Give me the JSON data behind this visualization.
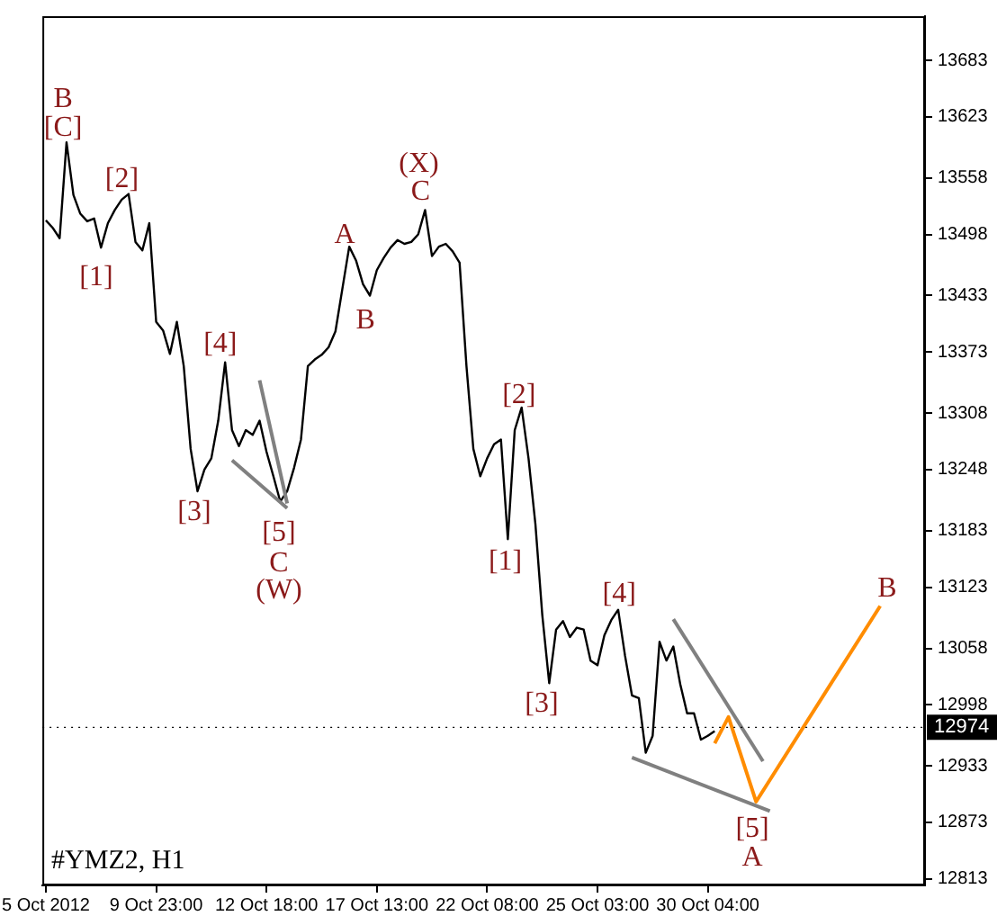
{
  "chart_data": {
    "type": "line",
    "title": "#YMZ2, H1",
    "marker": "none",
    "categories": [
      "5 Oct 2012",
      null,
      null,
      null,
      null,
      null,
      null,
      null,
      null,
      null,
      null,
      null,
      null,
      null,
      null,
      null,
      "9 Oct 23:00",
      null,
      null,
      null,
      null,
      null,
      null,
      null,
      null,
      null,
      null,
      null,
      null,
      null,
      null,
      null,
      "12 Oct 18:00",
      null,
      null,
      null,
      null,
      null,
      null,
      null,
      null,
      null,
      null,
      null,
      null,
      null,
      null,
      null,
      "17 Oct 13:00",
      null,
      null,
      null,
      null,
      null,
      null,
      null,
      null,
      null,
      null,
      null,
      null,
      null,
      null,
      null,
      "22 Oct 08:00",
      null,
      null,
      null,
      null,
      null,
      null,
      null,
      null,
      null,
      null,
      null,
      null,
      null,
      null,
      null,
      "25 Oct 03:00",
      null,
      null,
      null,
      null,
      null,
      null,
      null,
      null,
      null,
      null,
      null,
      null,
      null,
      null,
      null,
      "30 Oct 04:00",
      null,
      null,
      null,
      null,
      null,
      null,
      null,
      null,
      null,
      null,
      null,
      null,
      null,
      null,
      null,
      null,
      null,
      null,
      null,
      null,
      null,
      null,
      null,
      null,
      null,
      null,
      null,
      null,
      null,
      null,
      null
    ],
    "ylim": [
      12806,
      13730
    ],
    "yticks": [
      12813,
      12873,
      12933,
      12998,
      13058,
      13123,
      13183,
      13248,
      13308,
      13373,
      13433,
      13498,
      13558,
      13623,
      13683
    ],
    "ref_lines": [
      {
        "axis": "y",
        "value": 12974,
        "label": "12974",
        "color": "#000000"
      }
    ],
    "series": [
      {
        "color": "#000000",
        "values": [
          13513,
          13505,
          13494,
          13596,
          13540,
          13520,
          13512,
          13515,
          13484,
          13510,
          13524,
          13535,
          13541,
          13490,
          13481,
          13510,
          13405,
          13396,
          13371,
          13405,
          13358,
          13270,
          13225,
          13248,
          13260,
          13300,
          13362,
          13290,
          13273,
          13290,
          13285,
          13300,
          13267,
          13241,
          13214,
          13225,
          13250,
          13280,
          13358,
          13365,
          13370,
          13378,
          13395,
          13440,
          13485,
          13470,
          13445,
          13433,
          13460,
          13473,
          13484,
          13492,
          13488,
          13490,
          13498,
          13524,
          13475,
          13485,
          13488,
          13480,
          13468,
          13358,
          13270,
          13241,
          13260,
          13275,
          13280,
          13174,
          13290,
          13314,
          13260,
          13190,
          13093,
          13021,
          13078,
          13087,
          13070,
          13080,
          13078,
          13045,
          13040,
          13072,
          13088,
          13099,
          13050,
          13008,
          13005,
          12947,
          12965,
          13065,
          13045,
          13060,
          13020,
          12989,
          12989,
          12961,
          12965,
          12970,
          null,
          null,
          null,
          null,
          null,
          null,
          null,
          null,
          null,
          null,
          null,
          null,
          null,
          null,
          null,
          null,
          null,
          null,
          null,
          null,
          null,
          null,
          null,
          null,
          null,
          null,
          null,
          null,
          null,
          null
        ]
      },
      {
        "color": "#808080",
        "values": [
          null,
          null,
          null,
          null,
          null,
          null,
          null,
          null,
          null,
          null,
          null,
          null,
          null,
          null,
          null,
          null,
          null,
          null,
          null,
          null,
          null,
          null,
          null,
          null,
          null,
          null,
          null,
          null,
          null,
          null,
          null,
          13343,
          null,
          null,
          null,
          13212,
          null,
          null,
          null,
          null,
          null,
          null,
          null,
          null,
          null,
          null,
          null,
          null,
          null,
          null,
          null,
          null,
          null,
          null,
          null,
          null,
          null,
          null,
          null,
          null,
          null,
          null,
          null,
          null,
          null,
          null,
          null,
          null,
          null,
          null,
          null,
          null,
          null,
          null,
          null,
          null,
          null,
          null,
          null,
          null,
          null,
          null,
          null,
          null,
          null,
          null,
          null,
          null,
          null,
          null,
          null,
          null,
          null,
          null,
          null,
          null,
          null,
          null,
          null,
          null,
          null,
          null,
          null,
          null,
          null,
          null,
          null,
          null,
          null,
          null,
          null,
          null,
          null,
          null,
          null,
          null,
          null,
          null,
          null,
          null,
          null,
          null,
          null,
          null,
          null,
          null,
          null,
          null
        ]
      },
      {
        "color": "#808080",
        "values": [
          null,
          null,
          null,
          null,
          null,
          null,
          null,
          null,
          null,
          null,
          null,
          null,
          null,
          null,
          null,
          null,
          null,
          null,
          null,
          null,
          null,
          null,
          null,
          null,
          null,
          null,
          null,
          13258,
          null,
          null,
          null,
          null,
          null,
          null,
          null,
          13207,
          null,
          null,
          null,
          null,
          null,
          null,
          null,
          null,
          null,
          null,
          null,
          null,
          null,
          null,
          null,
          null,
          null,
          null,
          null,
          null,
          null,
          null,
          null,
          null,
          null,
          null,
          null,
          null,
          null,
          null,
          null,
          null,
          null,
          null,
          null,
          null,
          null,
          null,
          null,
          null,
          null,
          null,
          null,
          null,
          null,
          null,
          null,
          null,
          null,
          null,
          null,
          null,
          null,
          null,
          null,
          null,
          null,
          null,
          null,
          null,
          null,
          null,
          null,
          null,
          null,
          null,
          null,
          null,
          null,
          null,
          null,
          null,
          null,
          null,
          null,
          null,
          null,
          null,
          null,
          null,
          null,
          null,
          null,
          null,
          null,
          null,
          null,
          null,
          null,
          null,
          null,
          null
        ]
      },
      {
        "color": "#808080",
        "values": [
          null,
          null,
          null,
          null,
          null,
          null,
          null,
          null,
          null,
          null,
          null,
          null,
          null,
          null,
          null,
          null,
          null,
          null,
          null,
          null,
          null,
          null,
          null,
          null,
          null,
          null,
          null,
          null,
          null,
          null,
          null,
          null,
          null,
          null,
          null,
          null,
          null,
          null,
          null,
          null,
          null,
          null,
          null,
          null,
          null,
          null,
          null,
          null,
          null,
          null,
          null,
          null,
          null,
          null,
          null,
          null,
          null,
          null,
          null,
          null,
          null,
          null,
          null,
          null,
          null,
          null,
          null,
          null,
          null,
          null,
          null,
          null,
          null,
          null,
          null,
          null,
          null,
          null,
          null,
          null,
          null,
          null,
          null,
          null,
          null,
          null,
          null,
          null,
          null,
          null,
          null,
          13089,
          null,
          null,
          null,
          null,
          null,
          null,
          null,
          null,
          null,
          null,
          null,
          null,
          12938,
          null,
          null,
          null,
          null,
          null,
          null,
          null,
          null,
          null,
          null,
          null,
          null,
          null,
          null,
          null,
          null,
          null,
          null,
          null,
          null,
          null,
          null,
          null
        ]
      },
      {
        "color": "#808080",
        "values": [
          null,
          null,
          null,
          null,
          null,
          null,
          null,
          null,
          null,
          null,
          null,
          null,
          null,
          null,
          null,
          null,
          null,
          null,
          null,
          null,
          null,
          null,
          null,
          null,
          null,
          null,
          null,
          null,
          null,
          null,
          null,
          null,
          null,
          null,
          null,
          null,
          null,
          null,
          null,
          null,
          null,
          null,
          null,
          null,
          null,
          null,
          null,
          null,
          null,
          null,
          null,
          null,
          null,
          null,
          null,
          null,
          null,
          null,
          null,
          null,
          null,
          null,
          null,
          null,
          null,
          null,
          null,
          null,
          null,
          null,
          null,
          null,
          null,
          null,
          null,
          null,
          null,
          null,
          null,
          null,
          null,
          null,
          null,
          null,
          null,
          12942,
          null,
          null,
          null,
          null,
          null,
          null,
          null,
          null,
          null,
          null,
          null,
          null,
          null,
          null,
          null,
          null,
          null,
          null,
          null,
          12885,
          null,
          null,
          null,
          null,
          null,
          null,
          null,
          null,
          null,
          null,
          null,
          null,
          null,
          null,
          null,
          null,
          null,
          null,
          null,
          null,
          null,
          null
        ]
      },
      {
        "color": "#ff8c00",
        "values": [
          null,
          null,
          null,
          null,
          null,
          null,
          null,
          null,
          null,
          null,
          null,
          null,
          null,
          null,
          null,
          null,
          null,
          null,
          null,
          null,
          null,
          null,
          null,
          null,
          null,
          null,
          null,
          null,
          null,
          null,
          null,
          null,
          null,
          null,
          null,
          null,
          null,
          null,
          null,
          null,
          null,
          null,
          null,
          null,
          null,
          null,
          null,
          null,
          null,
          null,
          null,
          null,
          null,
          null,
          null,
          null,
          null,
          null,
          null,
          null,
          null,
          null,
          null,
          null,
          null,
          null,
          null,
          null,
          null,
          null,
          null,
          null,
          null,
          null,
          null,
          null,
          null,
          null,
          null,
          null,
          null,
          null,
          null,
          null,
          null,
          null,
          null,
          null,
          null,
          null,
          null,
          null,
          null,
          null,
          null,
          null,
          null,
          12957,
          null,
          12985,
          null,
          null,
          null,
          12895,
          null,
          null,
          null,
          null,
          null,
          null,
          null,
          null,
          null,
          null,
          null,
          null,
          null,
          null,
          null,
          null,
          null,
          13103,
          null,
          null,
          null,
          null,
          null,
          null
        ]
      }
    ],
    "annotations": [
      "B",
      "[C]",
      "[2]",
      "[1]",
      {
        "text": "[4]",
        "y": 13362
      },
      "[3]",
      "[5]",
      "C",
      "(W)",
      "A",
      "B",
      "(X)",
      "C",
      "[2]",
      "[1]",
      "[3]",
      "[4]",
      "[5]",
      "A",
      "B"
    ]
  }
}
